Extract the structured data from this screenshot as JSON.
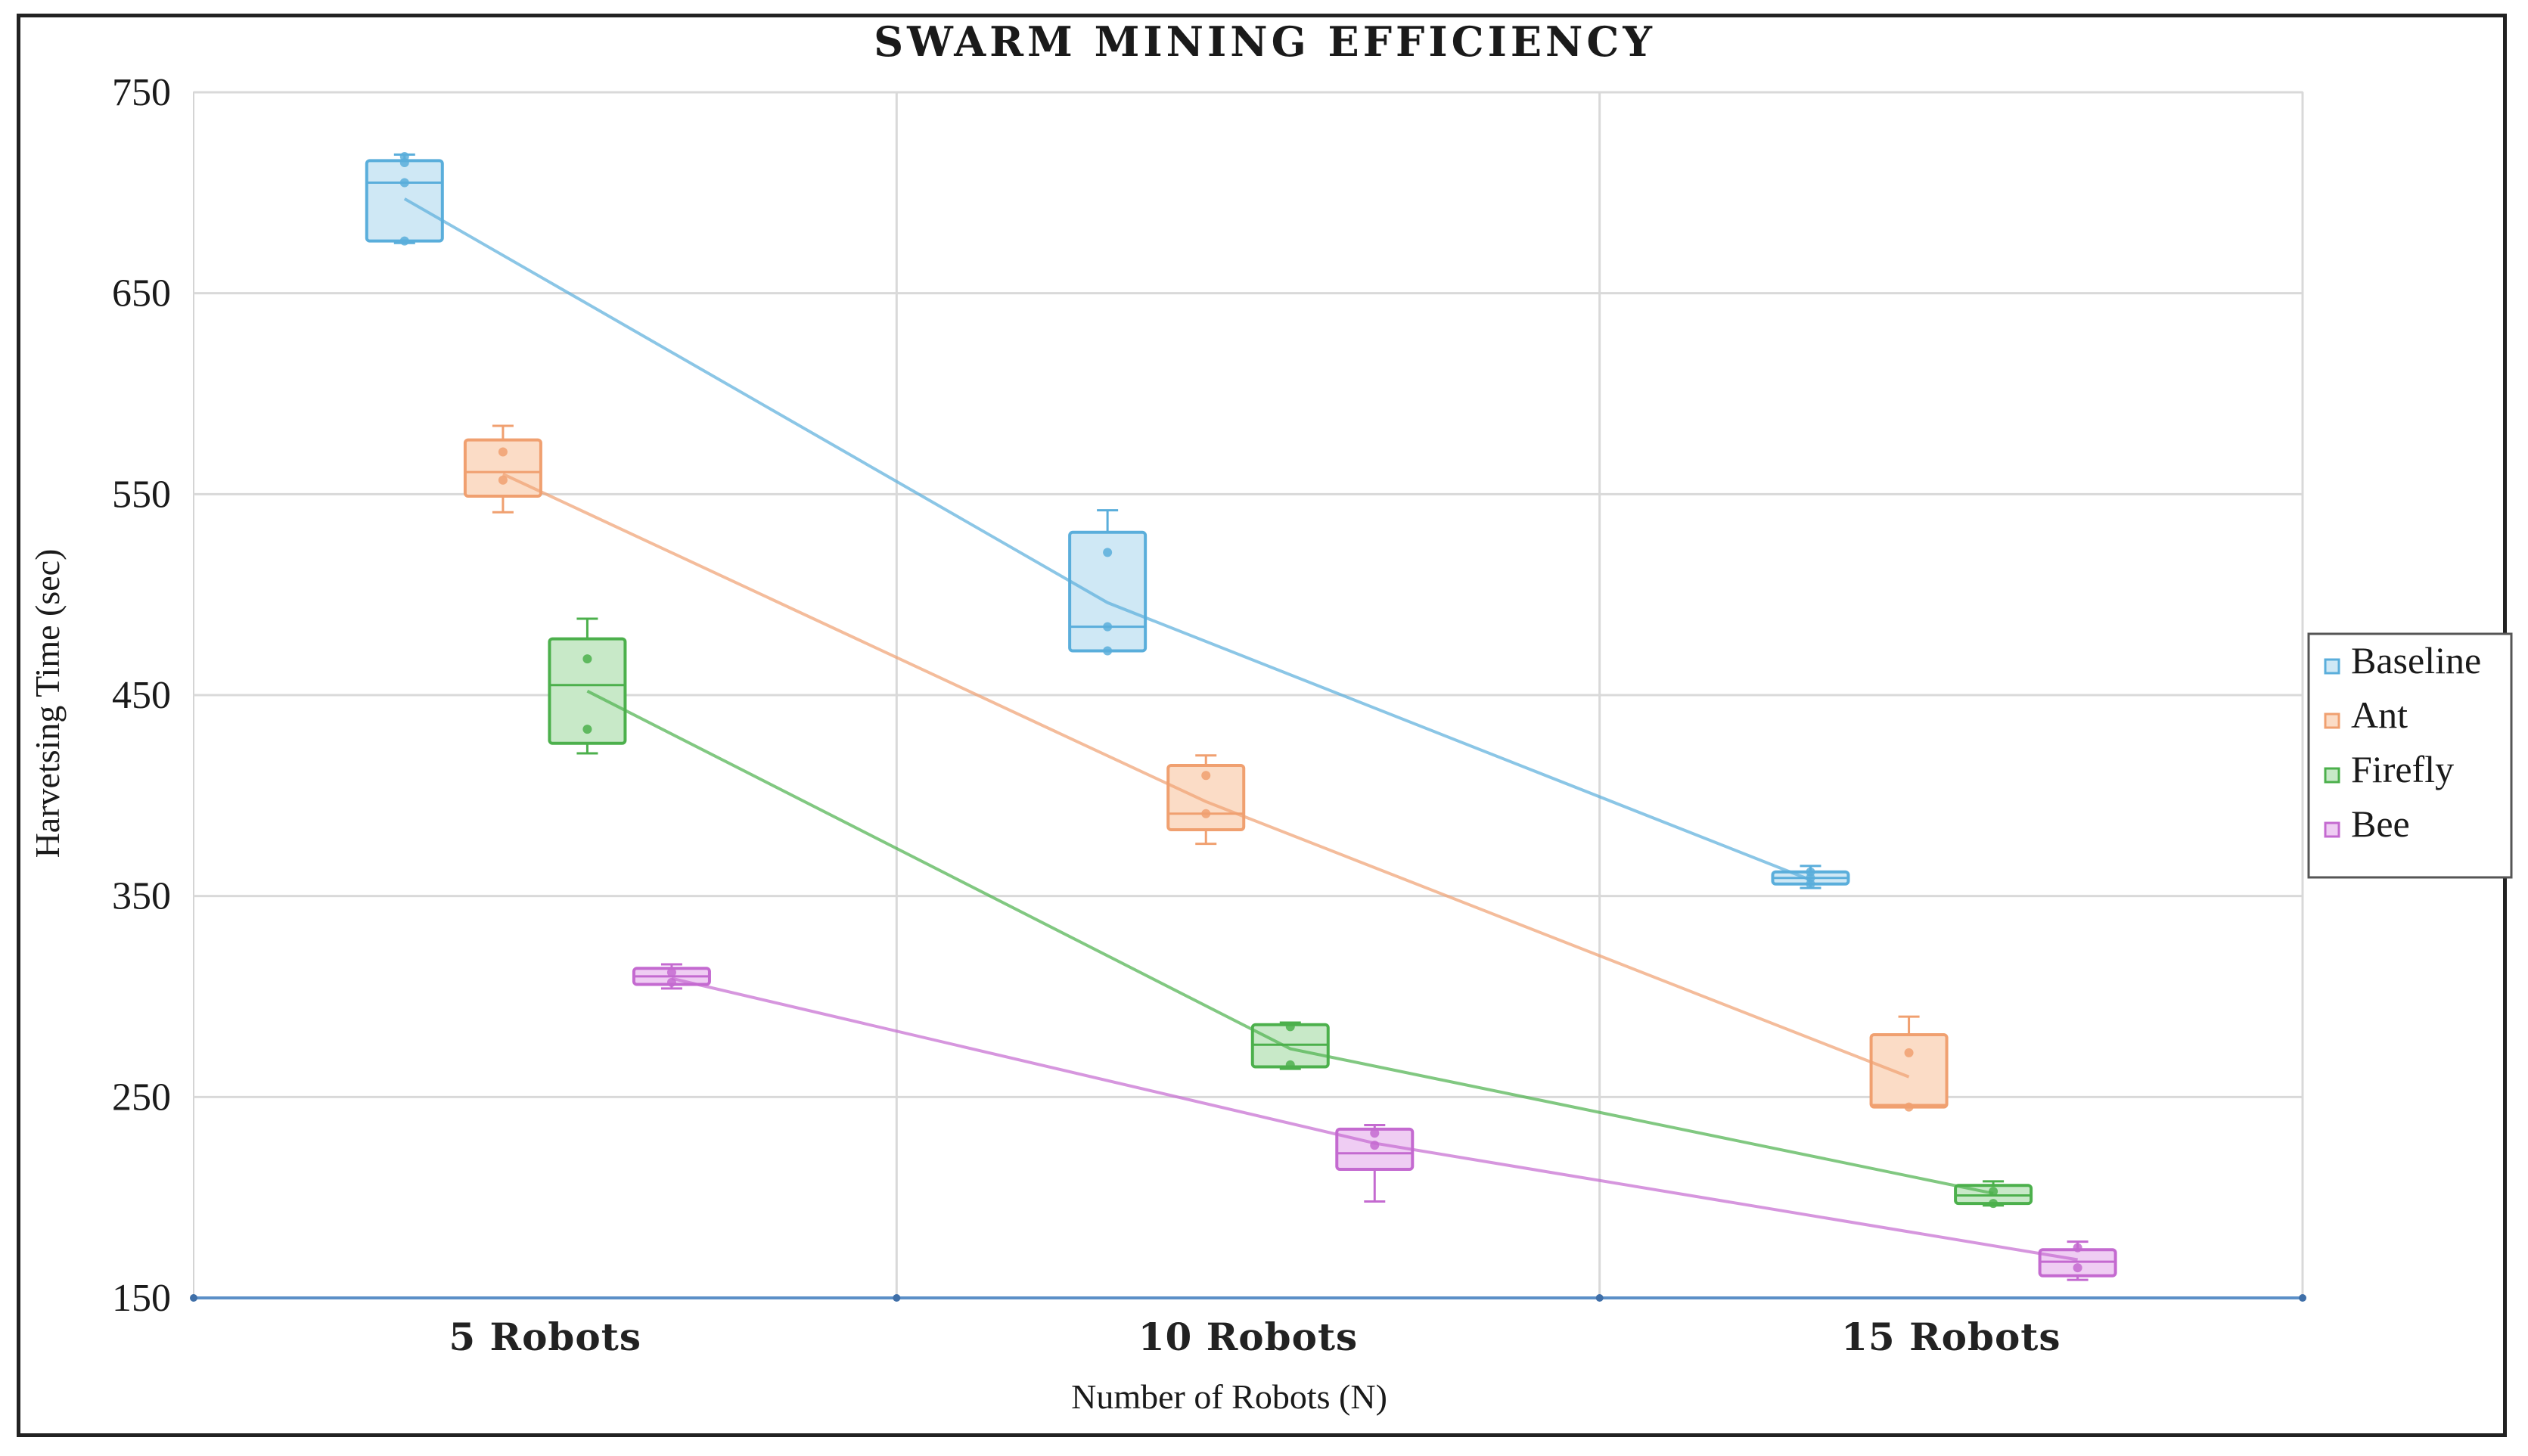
{
  "chart_data": {
    "type": "box",
    "title": "SWARM MINING EFFICIENCY",
    "xlabel": "Number of Robots (N)",
    "ylabel": "Harvetsing Time (sec)",
    "ylim": [
      150,
      750
    ],
    "yticks": [
      150,
      250,
      350,
      450,
      550,
      650,
      750
    ],
    "categories": [
      "5 Robots",
      "10 Robots",
      "15 Robots"
    ],
    "grid": true,
    "legend_position": "right",
    "series": [
      {
        "name": "Baseline",
        "color": "#5aaedb",
        "fill": "#cfe8f5",
        "boxes": [
          {
            "min": 675,
            "q1": 676,
            "median": 705,
            "q3": 716,
            "max": 719,
            "mean": 697,
            "points": [
              676,
              705,
              715,
              718
            ]
          },
          {
            "min": 472,
            "q1": 472,
            "median": 484,
            "q3": 531,
            "max": 542,
            "mean": 496,
            "points": [
              472,
              484,
              521
            ]
          },
          {
            "min": 354,
            "q1": 356,
            "median": 359,
            "q3": 362,
            "max": 365,
            "mean": 358,
            "points": [
              356,
              359,
              362
            ]
          }
        ]
      },
      {
        "name": "Ant",
        "color": "#f0a070",
        "fill": "#fbdcc6",
        "boxes": [
          {
            "min": 541,
            "q1": 549,
            "median": 561,
            "q3": 577,
            "max": 584,
            "mean": 560,
            "points": [
              557,
              571
            ]
          },
          {
            "min": 376,
            "q1": 383,
            "median": 391,
            "q3": 415,
            "max": 420,
            "mean": 397,
            "points": [
              391,
              410
            ]
          },
          {
            "min": 245,
            "q1": 245,
            "median": 246,
            "q3": 281,
            "max": 290,
            "mean": 260,
            "points": [
              245,
              272
            ]
          }
        ]
      },
      {
        "name": "Firefly",
        "color": "#4cb04c",
        "fill": "#c8e9c8",
        "boxes": [
          {
            "min": 421,
            "q1": 426,
            "median": 455,
            "q3": 478,
            "max": 488,
            "mean": 452,
            "points": [
              433,
              468
            ]
          },
          {
            "min": 264,
            "q1": 265,
            "median": 276,
            "q3": 286,
            "max": 287,
            "mean": 274,
            "points": [
              266,
              285
            ]
          },
          {
            "min": 196,
            "q1": 197,
            "median": 201,
            "q3": 206,
            "max": 208,
            "mean": 202,
            "points": [
              197,
              203
            ]
          }
        ]
      },
      {
        "name": "Bee",
        "color": "#c46ad0",
        "fill": "#efcdf3",
        "boxes": [
          {
            "min": 304,
            "q1": 306,
            "median": 310,
            "q3": 314,
            "max": 316,
            "mean": 309,
            "points": [
              307,
              312
            ]
          },
          {
            "min": 198,
            "q1": 214,
            "median": 222,
            "q3": 234,
            "max": 236,
            "mean": 227,
            "points": [
              226,
              232
            ]
          },
          {
            "min": 159,
            "q1": 161,
            "median": 168,
            "q3": 174,
            "max": 178,
            "mean": 169,
            "points": [
              165,
              175
            ]
          }
        ]
      }
    ]
  }
}
